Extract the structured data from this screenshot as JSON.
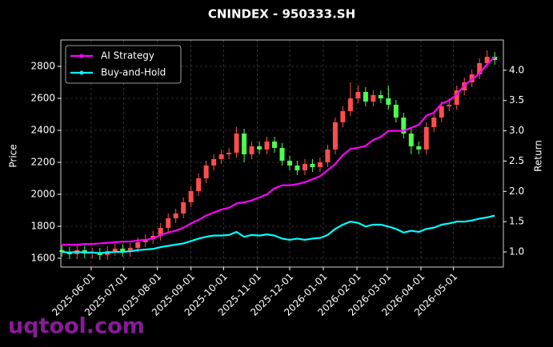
{
  "chart_data": {
    "type": "candlestick",
    "title": "CNINDEX - 950333.SH",
    "x": [
      "2025-05-05",
      "2025-05-12",
      "2025-05-19",
      "2025-05-26",
      "2025-06-02",
      "2025-06-09",
      "2025-06-16",
      "2025-06-23",
      "2025-06-30",
      "2025-07-07",
      "2025-07-14",
      "2025-07-21",
      "2025-07-28",
      "2025-08-04",
      "2025-08-11",
      "2025-08-18",
      "2025-08-25",
      "2025-09-01",
      "2025-09-08",
      "2025-09-15",
      "2025-09-22",
      "2025-09-29",
      "2025-10-06",
      "2025-10-13",
      "2025-10-20",
      "2025-10-27",
      "2025-11-03",
      "2025-11-10",
      "2025-11-17",
      "2025-11-24",
      "2025-12-01",
      "2025-12-08",
      "2025-12-15",
      "2025-12-22",
      "2025-12-29",
      "2026-01-05",
      "2026-01-12",
      "2026-01-19",
      "2026-01-26",
      "2026-02-02",
      "2026-02-09",
      "2026-02-16",
      "2026-02-23",
      "2026-03-02",
      "2026-03-09",
      "2026-03-16",
      "2026-03-23",
      "2026-03-30",
      "2026-04-06",
      "2026-04-13",
      "2026-04-20",
      "2026-04-27",
      "2026-05-04",
      "2026-05-11",
      "2026-05-18",
      "2026-05-25",
      "2026-06-01",
      "2026-06-08"
    ],
    "open": [
      1650,
      1640,
      1625,
      1650,
      1630,
      1635,
      1620,
      1645,
      1660,
      1640,
      1665,
      1700,
      1720,
      1740,
      1790,
      1850,
      1880,
      1950,
      2020,
      2100,
      2180,
      2220,
      2250,
      2260,
      2380,
      2250,
      2300,
      2280,
      2330,
      2290,
      2210,
      2180,
      2150,
      2190,
      2170,
      2200,
      2280,
      2450,
      2520,
      2600,
      2640,
      2580,
      2620,
      2600,
      2560,
      2480,
      2380,
      2300,
      2280,
      2420,
      2480,
      2550,
      2560,
      2650,
      2700,
      2750,
      2820,
      2860
    ],
    "high": [
      1680,
      1670,
      1680,
      1680,
      1665,
      1665,
      1675,
      1690,
      1690,
      1695,
      1730,
      1750,
      1770,
      1820,
      1880,
      1910,
      1980,
      2050,
      2130,
      2210,
      2250,
      2280,
      2290,
      2420,
      2410,
      2330,
      2330,
      2360,
      2360,
      2320,
      2240,
      2210,
      2220,
      2220,
      2230,
      2310,
      2480,
      2550,
      2700,
      2680,
      2670,
      2650,
      2650,
      2680,
      2590,
      2510,
      2410,
      2330,
      2450,
      2510,
      2580,
      2600,
      2680,
      2730,
      2780,
      2850,
      2900,
      2890
    ],
    "low": [
      1610,
      1595,
      1595,
      1600,
      1600,
      1590,
      1590,
      1615,
      1610,
      1610,
      1635,
      1670,
      1690,
      1710,
      1760,
      1820,
      1850,
      1920,
      1990,
      2070,
      2150,
      2190,
      2220,
      2230,
      2200,
      2220,
      2250,
      2250,
      2260,
      2180,
      2150,
      2120,
      2120,
      2140,
      2140,
      2170,
      2250,
      2420,
      2490,
      2570,
      2550,
      2550,
      2570,
      2530,
      2450,
      2350,
      2250,
      2250,
      2250,
      2390,
      2450,
      2520,
      2530,
      2620,
      2670,
      2720,
      2790,
      2810
    ],
    "close": [
      1640,
      1625,
      1650,
      1630,
      1635,
      1620,
      1645,
      1660,
      1640,
      1665,
      1700,
      1720,
      1740,
      1790,
      1850,
      1880,
      1950,
      2020,
      2100,
      2180,
      2220,
      2250,
      2260,
      2380,
      2250,
      2300,
      2280,
      2330,
      2290,
      2210,
      2180,
      2150,
      2190,
      2170,
      2200,
      2280,
      2450,
      2520,
      2600,
      2640,
      2580,
      2620,
      2600,
      2560,
      2480,
      2380,
      2300,
      2280,
      2420,
      2480,
      2550,
      2560,
      2650,
      2700,
      2750,
      2820,
      2860,
      2840
    ],
    "up_color": "#ff4d4d",
    "down_color": "#4dff4d",
    "ylabel": "Price",
    "y2label": "Return",
    "xlim": [
      "2025-05-04",
      "2026-06-16"
    ],
    "xticks": [
      "2025-06-01",
      "2025-07-01",
      "2025-08-01",
      "2025-09-01",
      "2025-10-01",
      "2025-11-01",
      "2025-12-01",
      "2026-01-01",
      "2026-02-01",
      "2026-03-01",
      "2026-04-01",
      "2026-05-01"
    ],
    "ylim": [
      1545,
      2965
    ],
    "yticks": [
      1600,
      1800,
      2000,
      2200,
      2400,
      2600,
      2800
    ],
    "y2lim": [
      0.75,
      4.5
    ],
    "y2ticks": [
      {
        "value": 1,
        "label": "1.0"
      },
      1.5,
      {
        "value": 2,
        "label": "2.0"
      },
      2.5,
      {
        "value": 3,
        "label": "3.0"
      },
      3.5,
      {
        "value": 4,
        "label": "4.0"
      }
    ],
    "grid": true,
    "legend": "upper left",
    "series": [
      {
        "name": "AI Strategy",
        "color": "#ff00ff",
        "axis": "y2",
        "values": [
          1.12,
          1.12,
          1.12,
          1.13,
          1.13,
          1.14,
          1.15,
          1.16,
          1.17,
          1.17,
          1.19,
          1.2,
          1.22,
          1.28,
          1.32,
          1.35,
          1.4,
          1.47,
          1.53,
          1.6,
          1.65,
          1.7,
          1.73,
          1.8,
          1.82,
          1.85,
          1.9,
          1.95,
          2.05,
          2.1,
          2.1,
          2.12,
          2.15,
          2.2,
          2.25,
          2.35,
          2.45,
          2.6,
          2.7,
          2.72,
          2.75,
          2.85,
          2.9,
          3.0,
          3.0,
          3.0,
          3.05,
          3.1,
          3.25,
          3.3,
          3.45,
          3.5,
          3.6,
          3.75,
          3.85,
          3.95,
          4.1,
          4.22
        ]
      },
      {
        "name": "Buy-and-Hold",
        "color": "#00ffff",
        "axis": "y2",
        "values": [
          1.0,
          0.99,
          1.0,
          0.99,
          0.99,
          0.98,
          0.99,
          1.0,
          1.0,
          1.01,
          1.03,
          1.04,
          1.05,
          1.08,
          1.1,
          1.12,
          1.14,
          1.18,
          1.22,
          1.25,
          1.27,
          1.27,
          1.28,
          1.33,
          1.25,
          1.28,
          1.27,
          1.29,
          1.27,
          1.22,
          1.2,
          1.22,
          1.2,
          1.22,
          1.23,
          1.28,
          1.38,
          1.45,
          1.5,
          1.48,
          1.42,
          1.45,
          1.45,
          1.42,
          1.38,
          1.32,
          1.35,
          1.33,
          1.38,
          1.4,
          1.45,
          1.47,
          1.5,
          1.5,
          1.52,
          1.55,
          1.57,
          1.6
        ]
      }
    ]
  },
  "watermark": "uqtool.com"
}
